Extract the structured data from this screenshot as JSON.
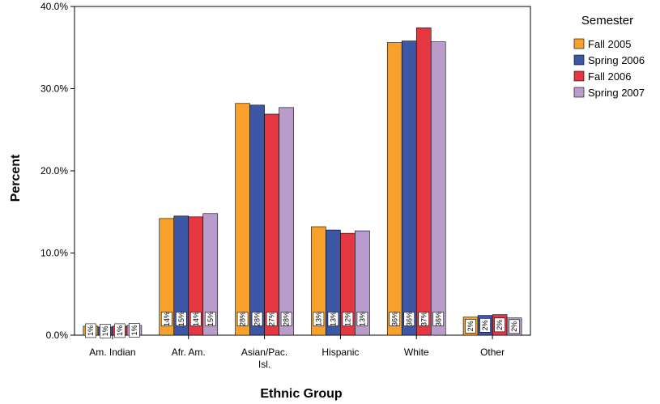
{
  "chart_data": {
    "type": "bar",
    "title": "",
    "xlabel": "Ethnic Group",
    "ylabel": "Percent",
    "ylim": [
      0,
      40
    ],
    "yticks": [
      0,
      10,
      20,
      30,
      40
    ],
    "ytick_labels": [
      "0.0%",
      "10.0%",
      "20.0%",
      "30.0%",
      "40.0%"
    ],
    "grid": false,
    "categories": [
      "Am. Indian",
      "Afr. Am.",
      "Asian/Pac. Isl.",
      "Hispanic",
      "White",
      "Other"
    ],
    "legend": {
      "title": "Semester",
      "position": "right"
    },
    "series": [
      {
        "name": "Fall 2005",
        "color": "#f7a02a",
        "values": [
          1.1,
          14.2,
          28.2,
          13.2,
          35.6,
          2.2
        ],
        "labels": [
          "1%",
          "14%",
          "28%",
          "13%",
          "36%",
          "2%"
        ]
      },
      {
        "name": "Spring 2006",
        "color": "#3d56a6",
        "values": [
          1.0,
          14.5,
          28.0,
          12.8,
          35.8,
          2.4
        ],
        "labels": [
          "1%",
          "15%",
          "28%",
          "13%",
          "36%",
          "2%"
        ]
      },
      {
        "name": "Fall 2006",
        "color": "#e63641",
        "values": [
          1.1,
          14.4,
          26.9,
          12.4,
          37.4,
          2.5
        ],
        "labels": [
          "1%",
          "14%",
          "27%",
          "12%",
          "37%",
          "2%"
        ]
      },
      {
        "name": "Spring 2007",
        "color": "#b99ccb",
        "values": [
          1.2,
          14.8,
          27.7,
          12.7,
          35.7,
          2.1
        ],
        "labels": [
          "1%",
          "15%",
          "28%",
          "13%",
          "36%",
          "2%"
        ]
      }
    ]
  }
}
